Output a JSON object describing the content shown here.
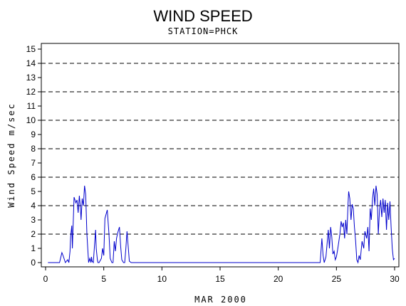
{
  "chart_data": {
    "type": "line",
    "title": "WIND SPEED",
    "subtitle": "STATION=PHCK",
    "xlabel": "MAR 2000",
    "ylabel": "Wind Speed m/sec",
    "xlim": [
      0,
      30
    ],
    "ylim": [
      0,
      15
    ],
    "x_ticks": [
      0,
      5,
      10,
      15,
      20,
      25,
      30
    ],
    "y_ticks": [
      0,
      1,
      2,
      3,
      4,
      5,
      6,
      7,
      8,
      9,
      10,
      11,
      12,
      13,
      14,
      15
    ],
    "gridlines_y": [
      2,
      4,
      6,
      8,
      10,
      12,
      14
    ],
    "grid": "horizontal dashed at even values",
    "series": [
      {
        "color": "#0000cc",
        "x": [
          0.2,
          1.2,
          1.4,
          1.5,
          1.7,
          1.9,
          2.0,
          2.1,
          2.15,
          2.25,
          2.3,
          2.45,
          2.6,
          2.7,
          2.8,
          2.9,
          3.0,
          3.05,
          3.15,
          3.25,
          3.35,
          3.45,
          3.55,
          3.7,
          3.8,
          3.9,
          3.95,
          4.0,
          4.1,
          4.3,
          4.35,
          4.45,
          4.5,
          4.6,
          4.8,
          4.9,
          5.0,
          5.1,
          5.3,
          5.45,
          5.55,
          5.7,
          5.8,
          5.9,
          6.0,
          6.1,
          6.2,
          6.35,
          6.45,
          6.55,
          6.7,
          6.8,
          6.9,
          7.0,
          7.2,
          7.35,
          7.5,
          7.6,
          7.7,
          8.0,
          9.0,
          12.0,
          15.0,
          18.0,
          21.0,
          23.6,
          23.75,
          23.85,
          23.95,
          24.1,
          24.3,
          24.4,
          24.5,
          24.6,
          24.7,
          24.8,
          24.9,
          25.0,
          25.1,
          25.3,
          25.4,
          25.5,
          25.6,
          25.7,
          25.8,
          25.9,
          26.0,
          26.05,
          26.15,
          26.25,
          26.35,
          26.45,
          26.55,
          26.65,
          26.75,
          26.85,
          26.95,
          27.05,
          27.2,
          27.35,
          27.45,
          27.6,
          27.7,
          27.8,
          27.9,
          28.0,
          28.1,
          28.2,
          28.3,
          28.4,
          28.5,
          28.6,
          28.7,
          28.8,
          28.9,
          29.0,
          29.1,
          29.2,
          29.3,
          29.4,
          29.5,
          29.6,
          29.7,
          29.8,
          29.9,
          30.0
        ],
        "y": [
          0.0,
          0.0,
          0.7,
          0.5,
          0.0,
          0.2,
          0.0,
          0.8,
          1.8,
          2.6,
          1.0,
          4.6,
          4.2,
          4.4,
          3.5,
          4.7,
          3.8,
          3.0,
          4.5,
          4.0,
          5.4,
          4.8,
          2.0,
          0.0,
          0.3,
          0.0,
          0.4,
          0.1,
          0.0,
          2.3,
          1.0,
          0.2,
          0.0,
          0.0,
          0.3,
          1.0,
          0.5,
          3.1,
          3.7,
          2.0,
          0.3,
          0.0,
          0.0,
          1.5,
          0.8,
          1.7,
          2.1,
          2.5,
          1.2,
          0.2,
          0.0,
          0.0,
          1.0,
          2.2,
          0.1,
          0.0,
          0.0,
          0.0,
          0.0,
          0.0,
          0.0,
          0.0,
          0.0,
          0.0,
          0.0,
          0.0,
          1.7,
          0.5,
          0.0,
          0.4,
          2.3,
          1.0,
          2.5,
          1.8,
          0.6,
          0.8,
          0.2,
          0.4,
          0.9,
          2.0,
          2.9,
          2.5,
          2.8,
          1.7,
          3.0,
          2.0,
          4.2,
          5.0,
          4.5,
          3.0,
          4.1,
          3.8,
          2.5,
          1.5,
          0.2,
          0.0,
          0.5,
          0.2,
          1.5,
          1.0,
          2.2,
          1.7,
          2.5,
          0.8,
          3.8,
          3.0,
          4.5,
          5.2,
          4.0,
          5.4,
          4.8,
          2.0,
          3.7,
          4.4,
          3.2,
          4.5,
          3.5,
          4.4,
          2.3,
          4.2,
          3.0,
          4.3,
          2.5,
          1.0,
          0.2,
          0.3
        ]
      }
    ]
  }
}
